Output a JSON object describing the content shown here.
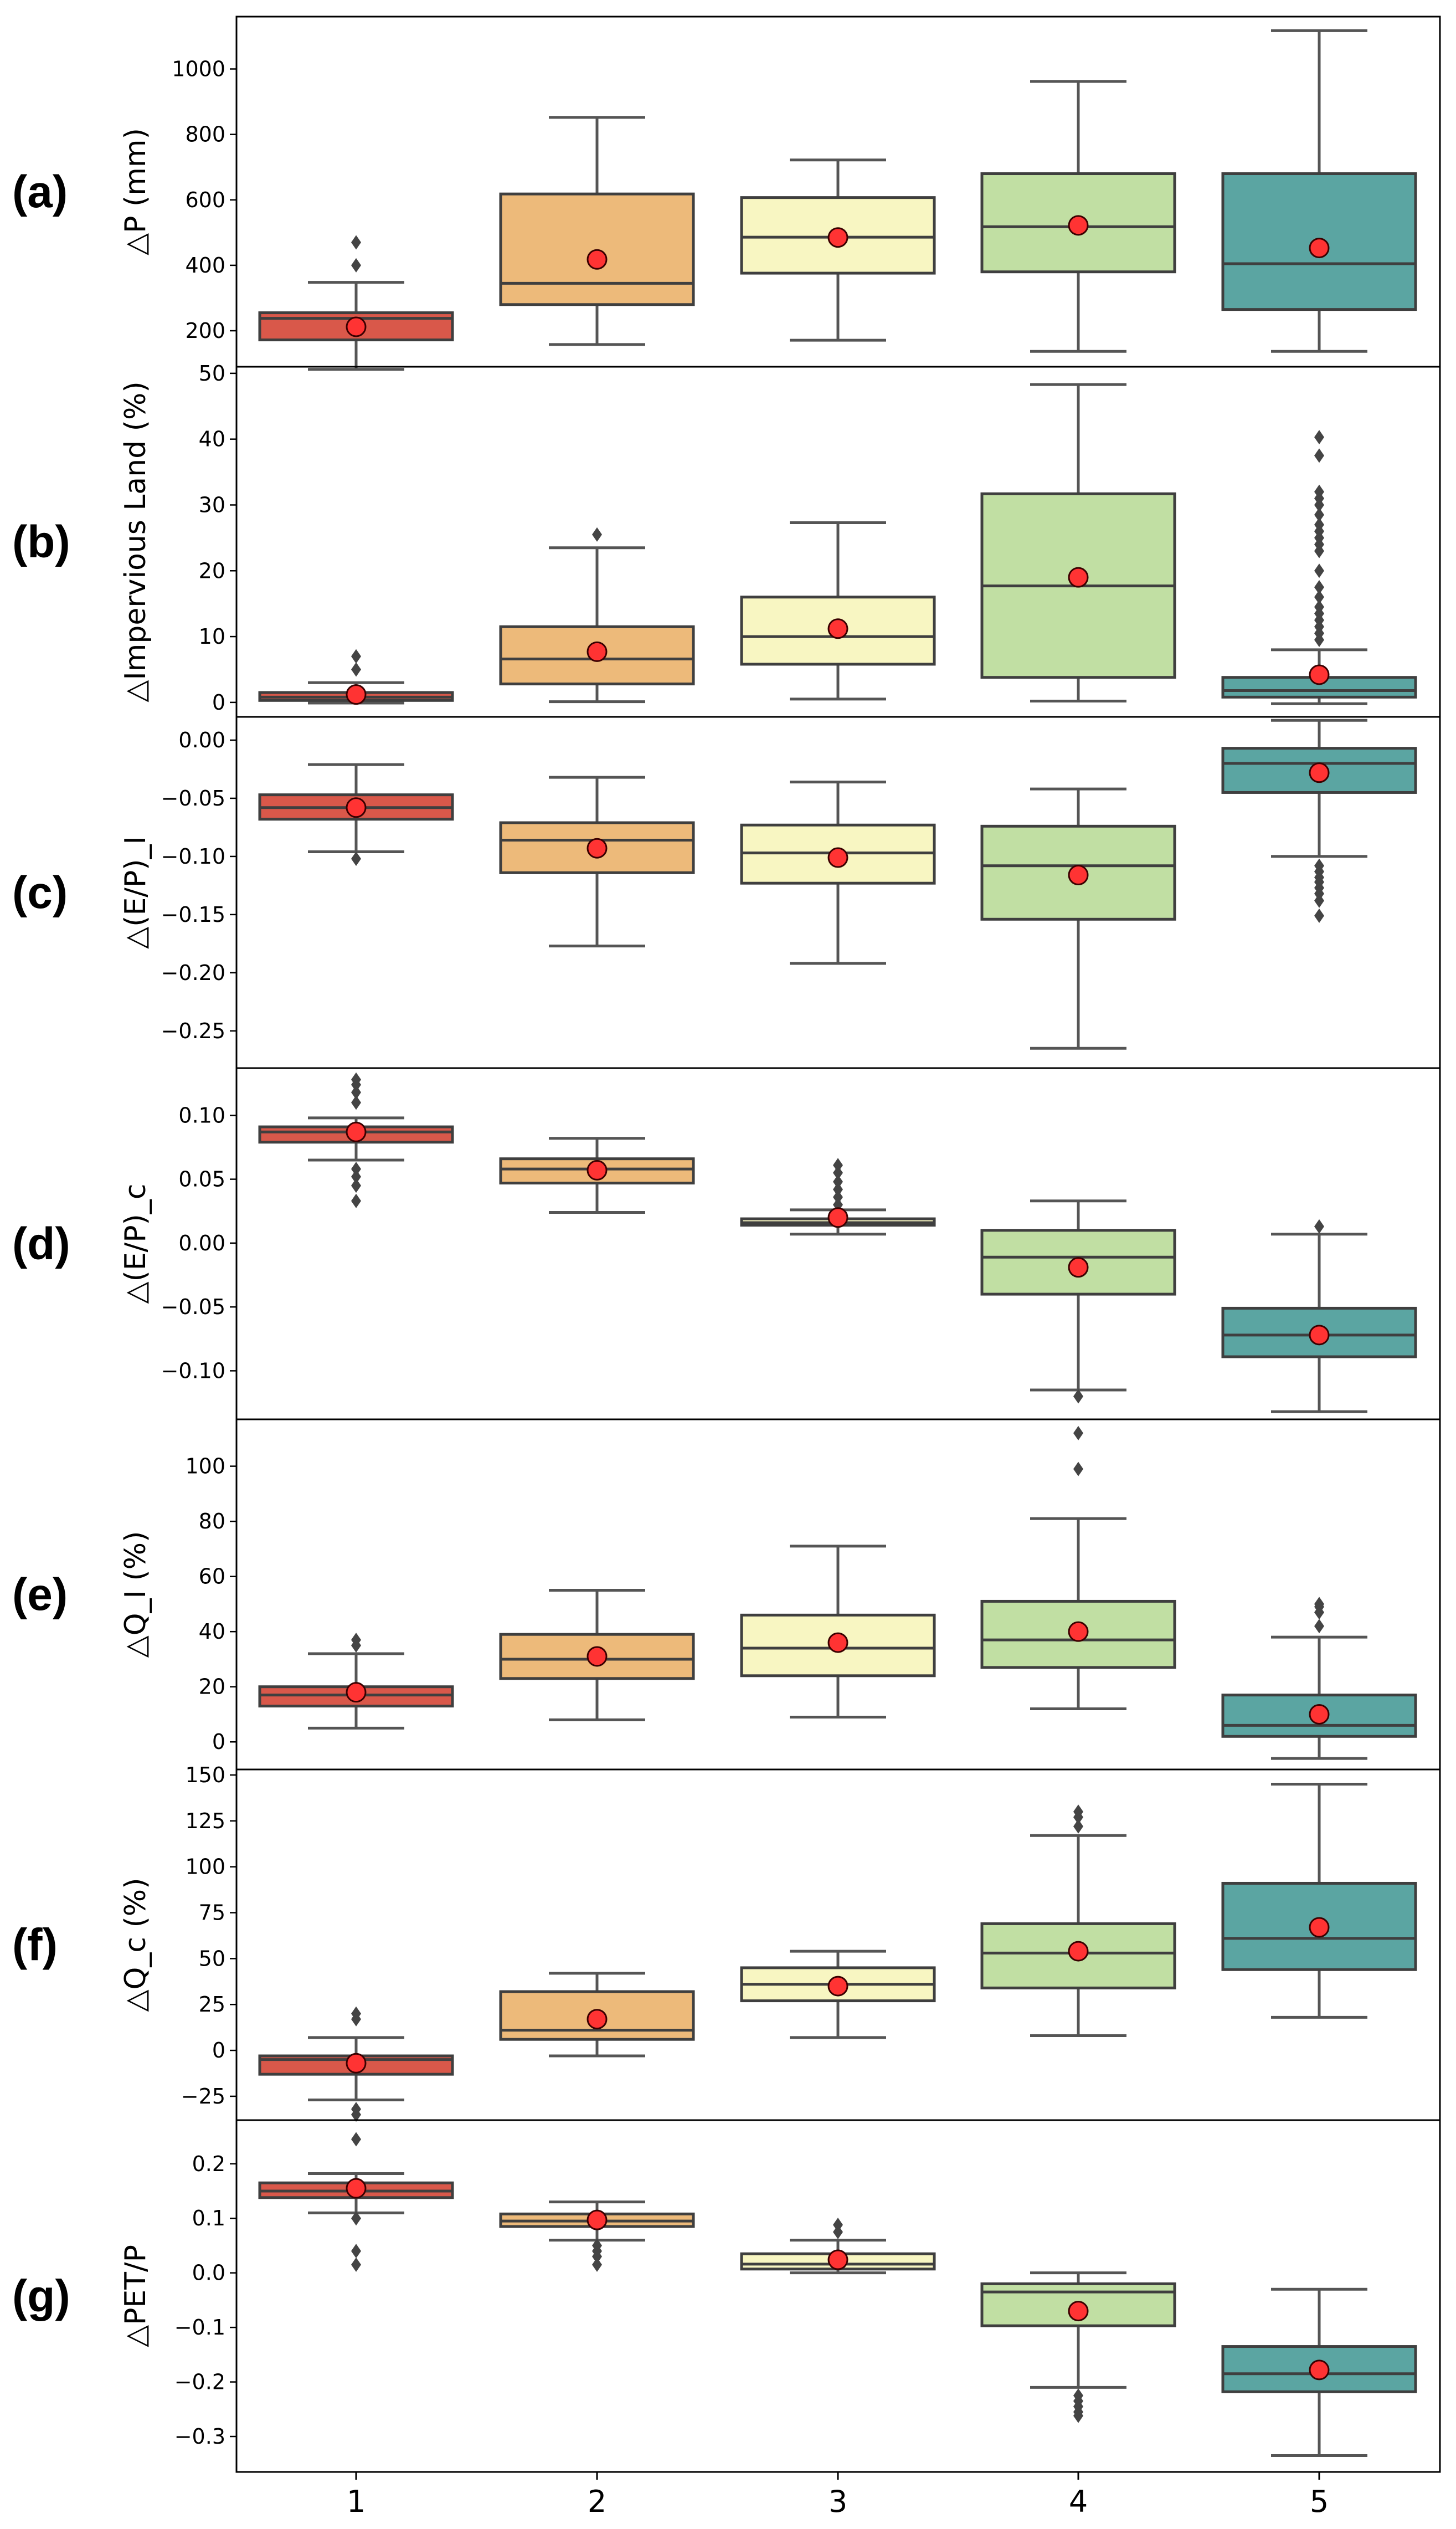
{
  "chart_data": {
    "type": "box",
    "shared_x": {
      "categories": [
        "1",
        "2",
        "3",
        "4",
        "5"
      ]
    },
    "colors": {
      "boxes": [
        "#d9584a",
        "#edba7a",
        "#f8f6c2",
        "#c1dfa3",
        "#5ba5a2"
      ],
      "box_edge": "#3f3f3f",
      "whisker": "#555555",
      "mean_marker_fill": "#ff3333",
      "mean_marker_edge": "#3a0000",
      "outlier": "#444444"
    },
    "panels": [
      {
        "label": "(a)",
        "ylabel": "△P (mm)",
        "ylim": [
          90,
          1160
        ],
        "yticks": [
          200,
          400,
          600,
          800,
          1000
        ],
        "yticklabels": [
          "200",
          "400",
          "600",
          "800",
          "1000"
        ],
        "boxes": [
          {
            "q1": 172,
            "median": 238,
            "q3": 255,
            "whislo": 82,
            "whishi": 348,
            "mean": 212,
            "fliers": [
              400,
              470
            ]
          },
          {
            "q1": 280,
            "median": 345,
            "q3": 618,
            "whislo": 158,
            "whishi": 852,
            "mean": 418,
            "fliers": []
          },
          {
            "q1": 376,
            "median": 486,
            "q3": 607,
            "whislo": 171,
            "whishi": 722,
            "mean": 485,
            "fliers": []
          },
          {
            "q1": 380,
            "median": 518,
            "q3": 680,
            "whislo": 137,
            "whishi": 962,
            "mean": 522,
            "fliers": []
          },
          {
            "q1": 265,
            "median": 405,
            "q3": 680,
            "whislo": 137,
            "whishi": 1117,
            "mean": 453,
            "fliers": []
          }
        ]
      },
      {
        "label": "(b)",
        "ylabel": "△Impervious Land (%)",
        "ylim": [
          -2.2,
          51
        ],
        "yticks": [
          0,
          10,
          20,
          30,
          40,
          50
        ],
        "yticklabels": [
          "0",
          "10",
          "20",
          "30",
          "40",
          "50"
        ],
        "boxes": [
          {
            "q1": 0.3,
            "median": 0.8,
            "q3": 1.5,
            "whislo": -0.1,
            "whishi": 3.0,
            "mean": 1.2,
            "fliers": [
              5.0,
              7.0
            ]
          },
          {
            "q1": 2.8,
            "median": 6.6,
            "q3": 11.5,
            "whislo": 0.1,
            "whishi": 23.5,
            "mean": 7.7,
            "fliers": [
              25.5
            ]
          },
          {
            "q1": 5.8,
            "median": 10.0,
            "q3": 16.0,
            "whislo": 0.5,
            "whishi": 27.3,
            "mean": 11.2,
            "fliers": []
          },
          {
            "q1": 3.8,
            "median": 17.7,
            "q3": 31.7,
            "whislo": 0.2,
            "whishi": 48.3,
            "mean": 19.0,
            "fliers": []
          },
          {
            "q1": 0.8,
            "median": 1.8,
            "q3": 3.8,
            "whislo": -0.2,
            "whishi": 8.0,
            "mean": 4.2,
            "fliers": [
              9.5,
              10.5,
              11.5,
              12.5,
              13.5,
              14.5,
              16.0,
              17.5,
              20.0,
              23.0,
              24.0,
              25.0,
              26.0,
              27.0,
              28.5,
              30.0,
              31.0,
              32.0,
              37.5,
              40.3
            ]
          }
        ]
      },
      {
        "label": "(c)",
        "ylabel": "△(E/P)_I",
        "ylim": [
          -0.282,
          0.02
        ],
        "yticks": [
          0,
          -0.05,
          -0.1,
          -0.15,
          -0.2,
          -0.25
        ],
        "yticklabels": [
          "0.00",
          "−0.05",
          "−0.10",
          "−0.15",
          "−0.20",
          "−0.25"
        ],
        "boxes": [
          {
            "q1": -0.068,
            "median": -0.058,
            "q3": -0.047,
            "whislo": -0.096,
            "whishi": -0.021,
            "mean": -0.058,
            "fliers": [
              -0.102
            ]
          },
          {
            "q1": -0.114,
            "median": -0.086,
            "q3": -0.071,
            "whislo": -0.177,
            "whishi": -0.032,
            "mean": -0.093,
            "fliers": []
          },
          {
            "q1": -0.123,
            "median": -0.097,
            "q3": -0.073,
            "whislo": -0.192,
            "whishi": -0.036,
            "mean": -0.101,
            "fliers": []
          },
          {
            "q1": -0.154,
            "median": -0.108,
            "q3": -0.074,
            "whislo": -0.265,
            "whishi": -0.042,
            "mean": -0.116,
            "fliers": []
          },
          {
            "q1": -0.045,
            "median": -0.02,
            "q3": -0.007,
            "whislo": -0.1,
            "whishi": 0.017,
            "mean": -0.028,
            "fliers": [
              -0.108,
              -0.113,
              -0.118,
              -0.122,
              -0.127,
              -0.132,
              -0.138,
              -0.151
            ]
          }
        ]
      },
      {
        "label": "(d)",
        "ylabel": "△(E/P)_c",
        "ylim": [
          -0.138,
          0.137
        ],
        "yticks": [
          0.1,
          0.05,
          0,
          -0.05,
          -0.1
        ],
        "yticklabels": [
          "0.10",
          "0.05",
          "0.00",
          "−0.05",
          "−0.10"
        ],
        "boxes": [
          {
            "q1": 0.079,
            "median": 0.087,
            "q3": 0.091,
            "whislo": 0.065,
            "whishi": 0.098,
            "mean": 0.087,
            "fliers": [
              0.058,
              0.052,
              0.045,
              0.033,
              0.11,
              0.118,
              0.124,
              0.128
            ]
          },
          {
            "q1": 0.047,
            "median": 0.058,
            "q3": 0.066,
            "whislo": 0.024,
            "whishi": 0.082,
            "mean": 0.057,
            "fliers": []
          },
          {
            "q1": 0.014,
            "median": 0.016,
            "q3": 0.019,
            "whislo": 0.007,
            "whishi": 0.026,
            "mean": 0.02,
            "fliers": [
              0.03,
              0.036,
              0.042,
              0.048,
              0.055,
              0.061
            ]
          },
          {
            "q1": -0.04,
            "median": -0.011,
            "q3": 0.01,
            "whislo": -0.115,
            "whishi": 0.033,
            "mean": -0.019,
            "fliers": [
              -0.12
            ]
          },
          {
            "q1": -0.089,
            "median": -0.072,
            "q3": -0.051,
            "whislo": -0.132,
            "whishi": 0.007,
            "mean": -0.072,
            "fliers": [
              0.013
            ]
          }
        ]
      },
      {
        "label": "(e)",
        "ylabel": "△Q_I (%)",
        "ylim": [
          -10,
          117
        ],
        "yticks": [
          0,
          20,
          40,
          60,
          80,
          100
        ],
        "yticklabels": [
          "0",
          "20",
          "40",
          "60",
          "80",
          "100"
        ],
        "boxes": [
          {
            "q1": 13,
            "median": 17,
            "q3": 20,
            "whislo": 5,
            "whishi": 32,
            "mean": 18,
            "fliers": [
              35,
              37
            ]
          },
          {
            "q1": 23,
            "median": 30,
            "q3": 39,
            "whislo": 8,
            "whishi": 55,
            "mean": 31,
            "fliers": []
          },
          {
            "q1": 24,
            "median": 34,
            "q3": 46,
            "whislo": 9,
            "whishi": 71,
            "mean": 36,
            "fliers": []
          },
          {
            "q1": 27,
            "median": 37,
            "q3": 51,
            "whislo": 12,
            "whishi": 81,
            "mean": 40,
            "fliers": [
              99,
              112
            ]
          },
          {
            "q1": 2,
            "median": 6,
            "q3": 17,
            "whislo": -6,
            "whishi": 38,
            "mean": 10,
            "fliers": [
              42,
              47,
              49,
              50
            ]
          }
        ]
      },
      {
        "label": "(f)",
        "ylabel": "△Q_c (%)",
        "ylim": [
          -38,
          153
        ],
        "yticks": [
          -25,
          0,
          25,
          50,
          75,
          100,
          125,
          150
        ],
        "yticklabels": [
          "−25",
          "0",
          "25",
          "50",
          "75",
          "100",
          "125",
          "150"
        ],
        "boxes": [
          {
            "q1": -13,
            "median": -5,
            "q3": -3,
            "whislo": -27,
            "whishi": 7,
            "mean": -7,
            "fliers": [
              17,
              20,
              -32,
              -35
            ]
          },
          {
            "q1": 6,
            "median": 11,
            "q3": 32,
            "whislo": -3,
            "whishi": 42,
            "mean": 17,
            "fliers": []
          },
          {
            "q1": 27,
            "median": 36,
            "q3": 45,
            "whislo": 7,
            "whishi": 54,
            "mean": 35,
            "fliers": []
          },
          {
            "q1": 34,
            "median": 53,
            "q3": 69,
            "whislo": 8,
            "whishi": 117,
            "mean": 54,
            "fliers": [
              122,
              127,
              130
            ]
          },
          {
            "q1": 44,
            "median": 61,
            "q3": 91,
            "whislo": 18,
            "whishi": 145,
            "mean": 67,
            "fliers": []
          }
        ]
      },
      {
        "label": "(g)",
        "ylabel": "△PET/P",
        "ylim": [
          -0.365,
          0.28
        ],
        "yticks": [
          0.2,
          0.1,
          0,
          -0.1,
          -0.2,
          -0.3
        ],
        "yticklabels": [
          "0.2",
          "0.1",
          "0.0",
          "−0.1",
          "−0.2",
          "−0.3"
        ],
        "boxes": [
          {
            "q1": 0.138,
            "median": 0.15,
            "q3": 0.165,
            "whislo": 0.11,
            "whishi": 0.182,
            "mean": 0.155,
            "fliers": [
              0.245,
              0.1,
              0.04,
              0.015
            ]
          },
          {
            "q1": 0.085,
            "median": 0.095,
            "q3": 0.108,
            "whislo": 0.06,
            "whishi": 0.13,
            "mean": 0.097,
            "fliers": [
              0.05,
              0.04,
              0.03,
              0.015
            ]
          },
          {
            "q1": 0.007,
            "median": 0.016,
            "q3": 0.035,
            "whislo": 0.0,
            "whishi": 0.06,
            "mean": 0.024,
            "fliers": [
              0.075,
              0.088
            ]
          },
          {
            "q1": -0.097,
            "median": -0.035,
            "q3": -0.02,
            "whislo": -0.21,
            "whishi": 0.0,
            "mean": -0.07,
            "fliers": [
              -0.225,
              -0.235,
              -0.245,
              -0.255,
              -0.262
            ]
          },
          {
            "q1": -0.218,
            "median": -0.185,
            "q3": -0.135,
            "whislo": -0.335,
            "whishi": -0.03,
            "mean": -0.178,
            "fliers": []
          }
        ]
      }
    ]
  }
}
